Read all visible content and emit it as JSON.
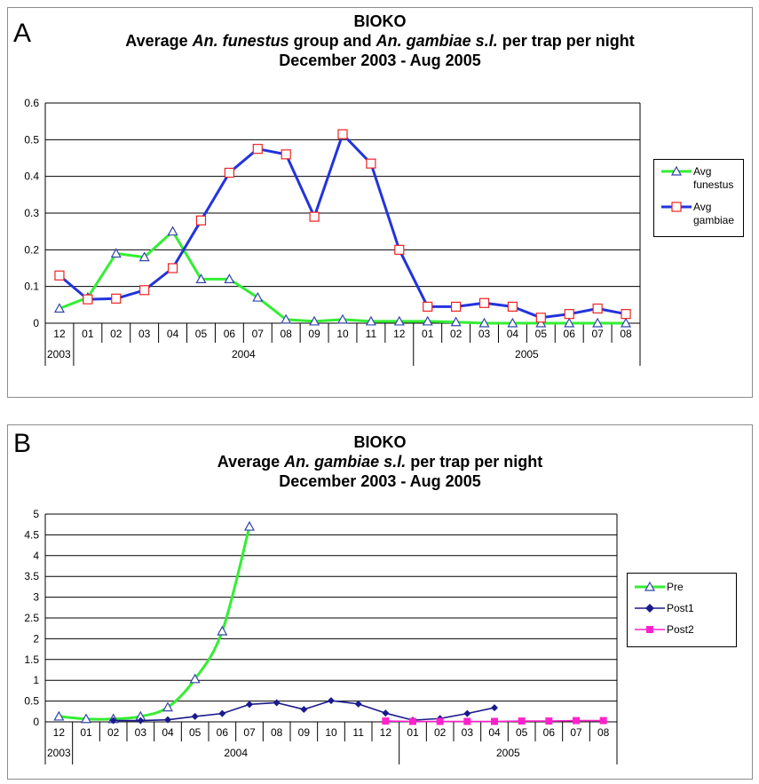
{
  "chart_data": [
    {
      "panel_label": "A",
      "type": "line",
      "title": "BIOKO",
      "subtitle_parts": [
        "Average ",
        "An. funestus",
        " group and ",
        "An. gambiae s.l.",
        " per trap per night"
      ],
      "subtitle_italic": [
        false,
        true,
        false,
        true,
        false
      ],
      "date_range": "December 2003 - Aug 2005",
      "ylim": [
        0,
        0.6
      ],
      "yticks": [
        "0",
        "0.1",
        "0.2",
        "0.3",
        "0.4",
        "0.5",
        "0.6"
      ],
      "grid": true,
      "categories": [
        "12",
        "01",
        "02",
        "03",
        "04",
        "05",
        "06",
        "07",
        "08",
        "09",
        "10",
        "11",
        "12",
        "01",
        "02",
        "03",
        "04",
        "05",
        "06",
        "07",
        "08"
      ],
      "year_groups": [
        {
          "label": "2003",
          "start": 0,
          "end": 0
        },
        {
          "label": "2004",
          "start": 1,
          "end": 12
        },
        {
          "label": "2005",
          "start": 13,
          "end": 20
        }
      ],
      "legend_position": "right",
      "series": [
        {
          "name": "Avg funestus",
          "name_lines": [
            "Avg",
            "funestus"
          ],
          "color": "#33ee33",
          "marker": "triangle",
          "marker_color": "#3344aa",
          "values": [
            0.04,
            0.07,
            0.19,
            0.18,
            0.25,
            0.12,
            0.12,
            0.07,
            0.01,
            0.005,
            0.01,
            0.005,
            0.005,
            0.005,
            0.003,
            0.0,
            0.0,
            0.0,
            0.0,
            0.0,
            0.0
          ]
        },
        {
          "name": "Avg gambiae",
          "name_lines": [
            "Avg",
            "gambiae"
          ],
          "color": "#2233dd",
          "marker": "square",
          "marker_color": "#ee2222",
          "values": [
            0.13,
            0.065,
            0.067,
            0.09,
            0.15,
            0.28,
            0.41,
            0.475,
            0.46,
            0.29,
            0.515,
            0.435,
            0.2,
            0.045,
            0.045,
            0.055,
            0.045,
            0.015,
            0.025,
            0.04,
            0.025
          ]
        }
      ]
    },
    {
      "panel_label": "B",
      "type": "line",
      "title": "BIOKO",
      "subtitle_parts": [
        "Average ",
        "An. gambiae s.l.",
        " per trap per night"
      ],
      "subtitle_italic": [
        false,
        true,
        false
      ],
      "date_range": "December 2003 - Aug 2005",
      "ylim": [
        0,
        5
      ],
      "yticks": [
        "0",
        "0.5",
        "1",
        "1.5",
        "2",
        "2.5",
        "3",
        "3.5",
        "4",
        "4.5",
        "5"
      ],
      "grid": true,
      "categories": [
        "12",
        "01",
        "02",
        "03",
        "04",
        "05",
        "06",
        "07",
        "08",
        "09",
        "10",
        "11",
        "12",
        "01",
        "02",
        "03",
        "04",
        "05",
        "06",
        "07",
        "08"
      ],
      "year_groups": [
        {
          "label": "2003",
          "start": 0,
          "end": 0
        },
        {
          "label": "2004",
          "start": 1,
          "end": 12
        },
        {
          "label": "2005",
          "start": 13,
          "end": 20
        }
      ],
      "legend_position": "right",
      "series": [
        {
          "name": "Pre",
          "color": "#33ee33",
          "marker": "triangle",
          "marker_color": "#3344aa",
          "values": [
            0.13,
            0.07,
            0.07,
            0.13,
            0.35,
            1.03,
            2.18,
            4.7,
            null,
            null,
            null,
            null,
            null,
            null,
            null,
            null,
            null,
            null,
            null,
            null,
            null
          ]
        },
        {
          "name": "Post1",
          "color": "#1a1a8c",
          "marker": "diamond",
          "marker_color": "#1a1a8c",
          "values": [
            null,
            null,
            0.03,
            0.03,
            0.05,
            0.13,
            0.2,
            0.42,
            0.46,
            0.3,
            0.51,
            0.43,
            0.21,
            0.04,
            0.08,
            0.2,
            0.34,
            null,
            null,
            null,
            null
          ]
        },
        {
          "name": "Post2",
          "color": "#ff22cc",
          "marker": "square",
          "marker_color": "#ff22cc",
          "values": [
            null,
            null,
            null,
            null,
            null,
            null,
            null,
            null,
            null,
            null,
            null,
            null,
            0.02,
            0.01,
            0.01,
            0.01,
            0.01,
            0.02,
            0.02,
            0.03,
            0.03
          ]
        }
      ]
    }
  ]
}
